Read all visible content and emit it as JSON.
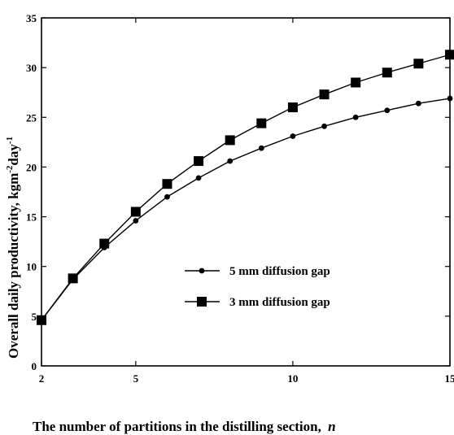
{
  "chart_data": {
    "type": "line",
    "xlabel": "The number of partitions in the distilling section,",
    "xlabel_var": "n",
    "ylabel_parts": [
      "Overall daily productivity, kgm",
      "-2",
      "day",
      "-1"
    ],
    "xlim": [
      2,
      15
    ],
    "ylim": [
      0,
      35
    ],
    "x_ticks": [
      2,
      5,
      10,
      15
    ],
    "y_ticks": [
      0,
      5,
      10,
      15,
      20,
      25,
      30,
      35
    ],
    "x": [
      2,
      3,
      4,
      5,
      6,
      7,
      8,
      9,
      10,
      11,
      12,
      13,
      14,
      15
    ],
    "series": [
      {
        "name": "5 mm diffusion gap",
        "marker": "circle",
        "values": [
          4.6,
          8.7,
          11.9,
          14.6,
          17.0,
          18.9,
          20.6,
          21.9,
          23.1,
          24.1,
          25.0,
          25.7,
          26.4,
          26.9
        ]
      },
      {
        "name": "3 mm diffusion gap",
        "marker": "square",
        "values": [
          4.6,
          8.8,
          12.3,
          15.5,
          18.3,
          20.6,
          22.7,
          24.4,
          26.0,
          27.3,
          28.5,
          29.5,
          30.4,
          31.3
        ]
      }
    ],
    "grid": false,
    "legend_position": "center-right"
  }
}
